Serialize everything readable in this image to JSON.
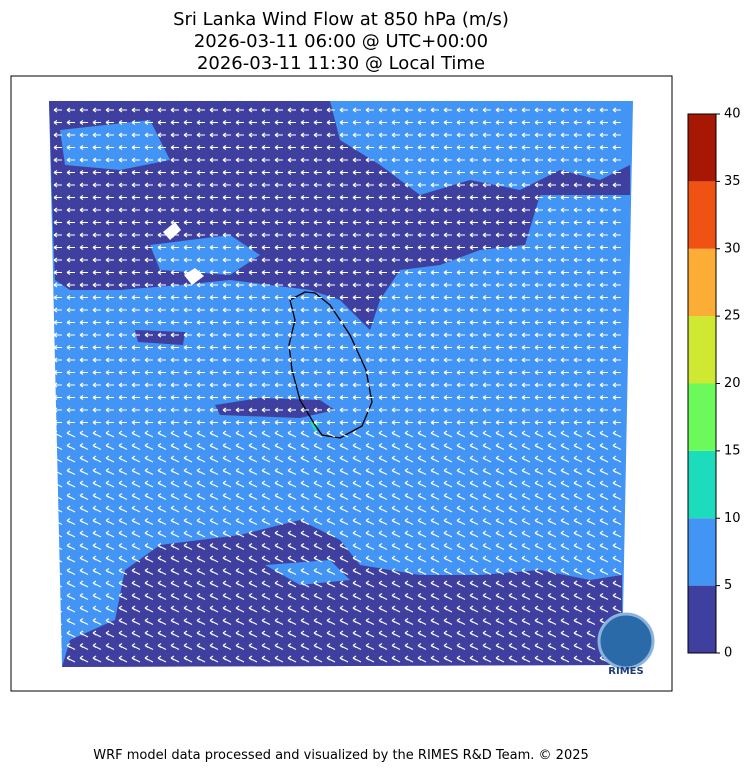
{
  "title": [
    "Sri Lanka Wind Flow at 850 hPa (m/s)",
    "2026-03-11 06:00 @ UTC+00:00",
    "2026-03-11 11:30 @ Local Time"
  ],
  "colorbar": {
    "levels": [
      0,
      5,
      10,
      15,
      20,
      25,
      30,
      35,
      40
    ],
    "colors": [
      "#3f3fa0",
      "#4294f5",
      "#1ddcbc",
      "#6cfa5a",
      "#cfe831",
      "#fbad35",
      "#ef5212",
      "#a61803"
    ]
  },
  "logo": "RIMES",
  "footer": "WRF model data processed and visualized by the RIMES R&D Team. © 2025"
}
